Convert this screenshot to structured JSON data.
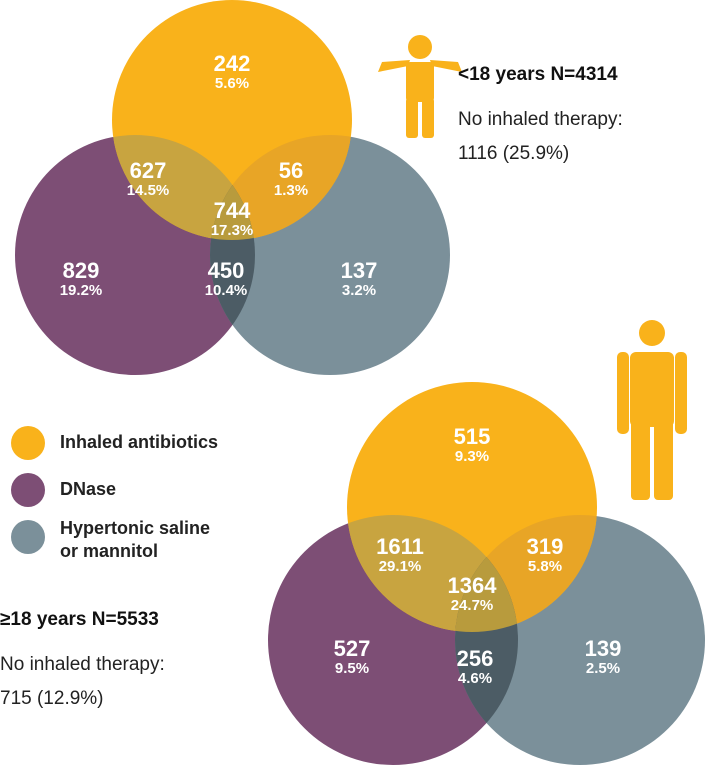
{
  "legend": [
    {
      "lines": [
        "Inhaled antibiotics"
      ]
    },
    {
      "lines": [
        "DNase"
      ]
    },
    {
      "lines": [
        "Hypertonic saline",
        "or mannitol"
      ]
    }
  ],
  "venns": [
    {
      "title": "<18 years N=4314",
      "note": "No inhaled therapy:",
      "note_value": "1116 (25.9%)",
      "regions": [
        {
          "count": "242",
          "pct": "5.6%"
        },
        {
          "count": "627",
          "pct": "14.5%"
        },
        {
          "count": "56",
          "pct": "1.3%"
        },
        {
          "count": "744",
          "pct": "17.3%"
        },
        {
          "count": "829",
          "pct": "19.2%"
        },
        {
          "count": "450",
          "pct": "10.4%"
        },
        {
          "count": "137",
          "pct": "3.2%"
        }
      ]
    },
    {
      "title": "≥18 years N=5533",
      "note": "No inhaled therapy:",
      "note_value": "715 (12.9%)",
      "regions": [
        {
          "count": "515",
          "pct": "9.3%"
        },
        {
          "count": "1611",
          "pct": "29.1%"
        },
        {
          "count": "319",
          "pct": "5.8%"
        },
        {
          "count": "1364",
          "pct": "24.7%"
        },
        {
          "count": "527",
          "pct": "9.5%"
        },
        {
          "count": "256",
          "pct": "4.6%"
        },
        {
          "count": "139",
          "pct": "2.5%"
        }
      ]
    }
  ]
}
